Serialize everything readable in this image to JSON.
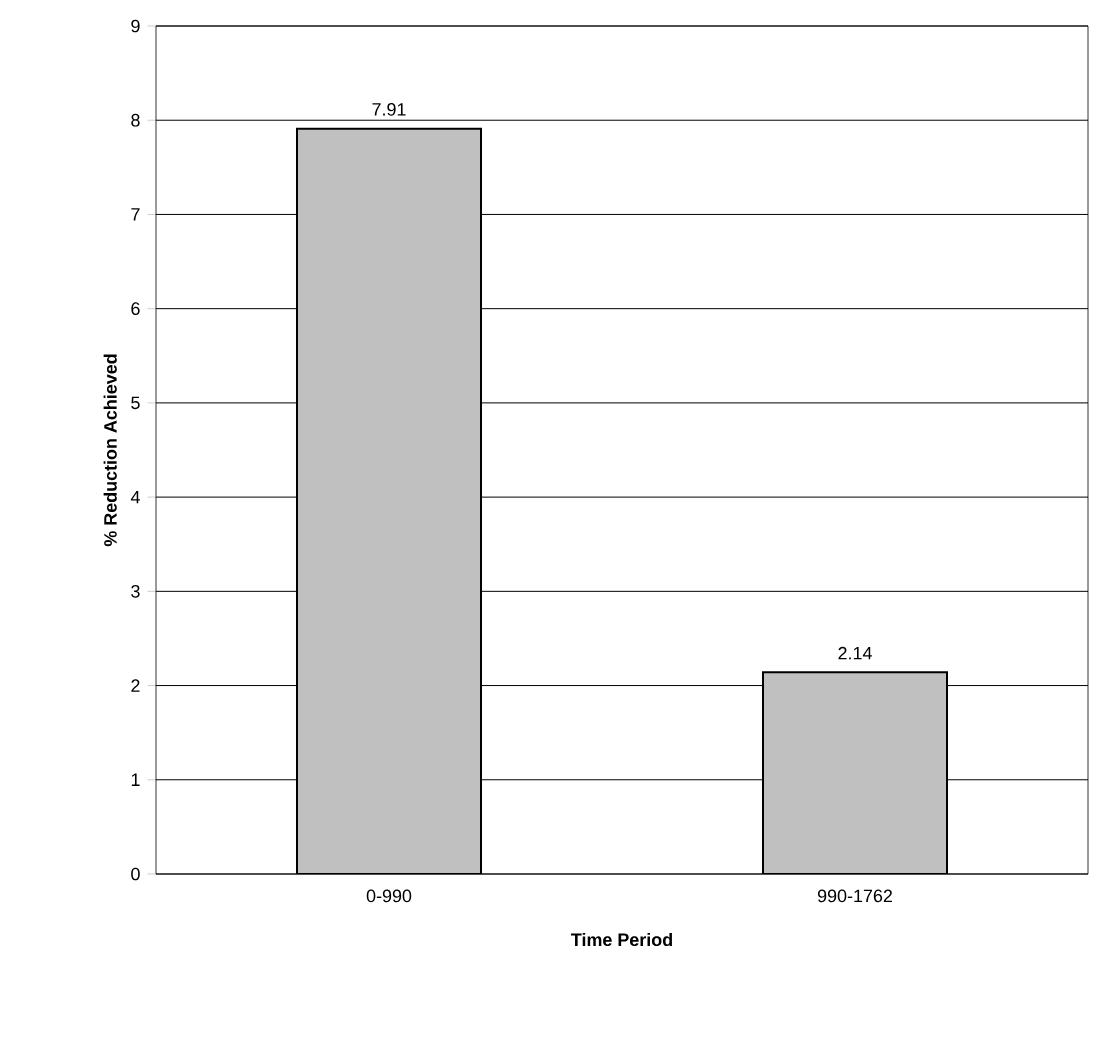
{
  "chart_data": {
    "type": "bar",
    "xlabel": "Time Period",
    "ylabel": "% Reduction Achieved",
    "categories": [
      "0-990",
      "990-1762"
    ],
    "values": [
      7.91,
      2.14
    ],
    "color": "#c0c0c0",
    "ylim": [
      0,
      9
    ],
    "yticks": [
      0,
      1,
      2,
      3,
      4,
      5,
      6,
      7,
      8,
      9
    ],
    "grid": "y",
    "data_labels": true
  }
}
